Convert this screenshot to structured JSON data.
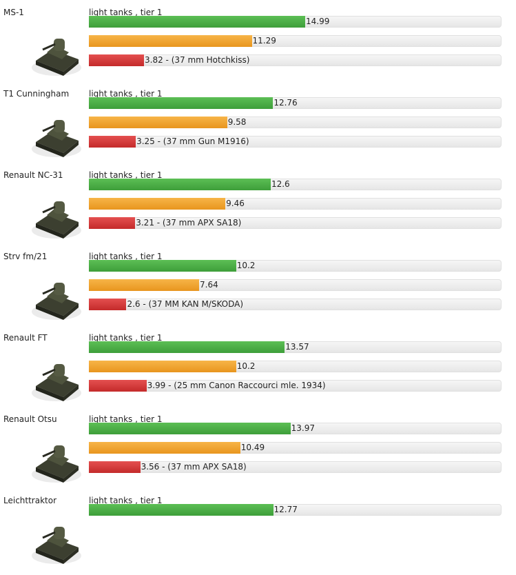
{
  "tanks": [
    {
      "name": "MS-1",
      "class": "light tanks , tier 1",
      "values": [
        14.99,
        11.29,
        3.82
      ],
      "value_labels": [
        null,
        null,
        "3.82 - (37 mm Hotchkiss)"
      ]
    },
    {
      "name": "T1 Cunningham",
      "class": "light tanks , tier 1",
      "values": [
        12.76,
        9.58,
        3.25
      ],
      "value_labels": [
        null,
        null,
        "3.25 - (37 mm Gun M1916)"
      ]
    },
    {
      "name": "Renault NC-31",
      "class": "light tanks , tier 1",
      "values": [
        12.6,
        9.46,
        3.21
      ],
      "value_labels": [
        null,
        null,
        "3.21 - (37 mm APX SA18)"
      ]
    },
    {
      "name": "Strv fm/21",
      "class": "light tanks , tier 1",
      "values": [
        10.2,
        7.64,
        2.6
      ],
      "value_labels": [
        null,
        null,
        "2.6 - (37 MM KAN M/SKODA)"
      ]
    },
    {
      "name": "Renault FT",
      "class": "light tanks , tier 1",
      "values": [
        13.57,
        10.2,
        3.99
      ],
      "value_labels": [
        null,
        null,
        "3.99 - (25 mm Canon Raccourci mle. 1934)"
      ]
    },
    {
      "name": "Renault Otsu",
      "class": "light tanks , tier 1",
      "values": [
        13.97,
        10.49,
        3.56
      ],
      "value_labels": [
        null,
        null,
        "3.56 - (37 mm APX SA18)"
      ]
    },
    {
      "name": "Leichttraktor",
      "class": "light tanks , tier 1",
      "values": [
        12.77
      ],
      "value_labels": [
        null
      ]
    }
  ]
}
